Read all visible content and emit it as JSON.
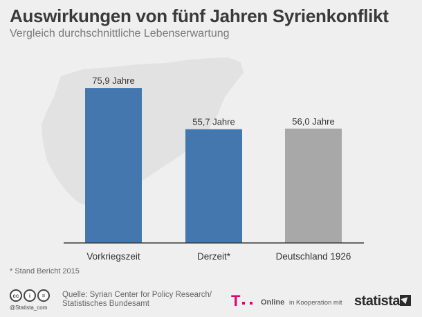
{
  "header": {
    "title": "Auswirkungen von fünf Jahren Syrienkonflikt",
    "subtitle": "Vergleich durchschnittliche Lebenserwartung"
  },
  "footnote": "* Stand Bericht 2015",
  "footer": {
    "cc_icons": [
      "cc",
      "i",
      "="
    ],
    "handle": "@Statista_com",
    "source_line1": "Quelle: Syrian Center for Policy Research/",
    "source_line2": "Statistisches Bundesamt",
    "telekom_logo": "T",
    "online": "Online",
    "cooperation": "in Kooperation mit",
    "statista": "statista"
  },
  "colors": {
    "blue": "#4377ad",
    "gray": "#a8a8a8",
    "map": "#e2e2e2"
  },
  "chart_data": {
    "type": "bar",
    "categories": [
      "Vorkriegszeit",
      "Derzeit*",
      "Deutschland 1926"
    ],
    "values": [
      75.9,
      55.7,
      56.0
    ],
    "value_labels": [
      "75,9 Jahre",
      "55,7 Jahre",
      "56,0 Jahre"
    ],
    "bar_colors": [
      "#4377ad",
      "#4377ad",
      "#a8a8a8"
    ],
    "title": "Auswirkungen von fünf Jahren Syrienkonflikt",
    "subtitle": "Vergleich durchschnittliche Lebenserwartung",
    "xlabel": "",
    "ylabel": "",
    "ylim": [
      0,
      100
    ],
    "grid": false,
    "legend": "none"
  }
}
